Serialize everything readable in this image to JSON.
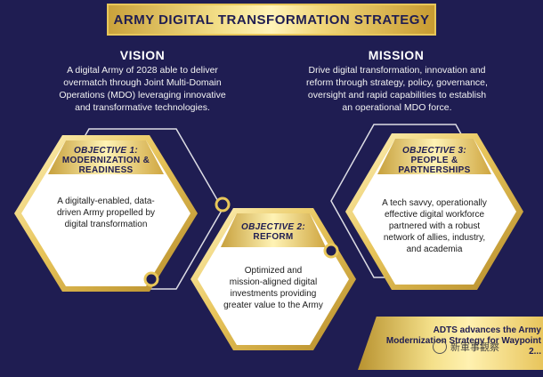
{
  "banner": {
    "title": "ARMY DIGITAL TRANSFORMATION STRATEGY"
  },
  "vision": {
    "title": "VISION",
    "lines": [
      "A digital Army of 2028 able to deliver",
      "overmatch through Joint Multi-Domain",
      "Operations (MDO) leveraging innovative",
      "and transformative technologies."
    ]
  },
  "mission": {
    "title": "MISSION",
    "lines": [
      "Drive digital transformation, innovation and",
      "reform through strategy, policy, governance,",
      "oversight and rapid capabilities to establish",
      "an operational MDO force."
    ]
  },
  "objectives": [
    {
      "lead": "OBJECTIVE 1:",
      "title_lines": [
        "MODERNIZATION &",
        "READINESS"
      ],
      "body_lines": [
        "A digitally-enabled, data-",
        "driven Army propelled by",
        "digital transformation"
      ]
    },
    {
      "lead": "OBJECTIVE 2:",
      "title_lines": [
        "REFORM"
      ],
      "body_lines": [
        "Optimized and",
        "mission-aligned digital",
        "investments providing",
        "greater value to the Army"
      ]
    },
    {
      "lead": "OBJECTIVE 3:",
      "title_lines": [
        "PEOPLE &",
        "PARTNERSHIPS"
      ],
      "body_lines": [
        "A tech savvy, operationally",
        "effective digital workforce",
        "partnered with a robust",
        "network of allies, industry,",
        "and academia"
      ]
    }
  ],
  "adts": {
    "lines": [
      "ADTS advances the Army",
      "Modernization Strategy for Waypoint",
      "2..."
    ]
  },
  "watermark": {
    "text": "新軍事觀察"
  },
  "colors": {
    "background": "#1f1d52",
    "gold": "#e8c75a",
    "navy": "#1f1d52"
  }
}
